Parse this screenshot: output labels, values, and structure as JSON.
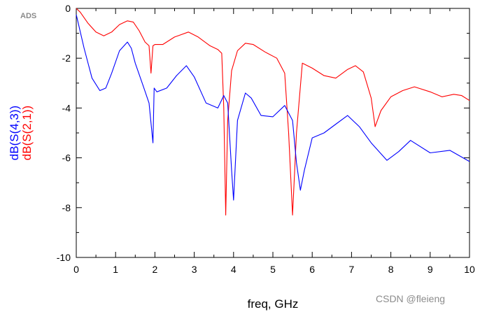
{
  "ads_label": "ADS",
  "watermark": "CSDN @fleieng",
  "chart_data": {
    "type": "line",
    "xlabel": "freq, GHz",
    "xlim": [
      0,
      10
    ],
    "ylim": [
      -10,
      0
    ],
    "xticks": [
      0,
      1,
      2,
      3,
      4,
      5,
      6,
      7,
      8,
      9,
      10
    ],
    "yticks": [
      0,
      -2,
      -4,
      -6,
      -8,
      -10
    ],
    "grid": false,
    "series": [
      {
        "name": "dB(S(2,1))",
        "color": "#ff0000",
        "x": [
          0,
          0.1,
          0.3,
          0.5,
          0.7,
          0.9,
          1.1,
          1.3,
          1.45,
          1.6,
          1.75,
          1.85,
          1.9,
          1.95,
          2.0,
          2.2,
          2.5,
          2.85,
          3.1,
          3.4,
          3.6,
          3.7,
          3.75,
          3.8,
          3.85,
          3.95,
          4.1,
          4.3,
          4.5,
          4.8,
          5.1,
          5.3,
          5.4,
          5.5,
          5.6,
          5.75,
          6.0,
          6.3,
          6.6,
          6.9,
          7.1,
          7.3,
          7.5,
          7.6,
          7.75,
          8.0,
          8.3,
          8.6,
          9.0,
          9.3,
          9.6,
          9.8,
          10
        ],
        "y": [
          0,
          -0.15,
          -0.6,
          -0.95,
          -1.1,
          -0.95,
          -0.65,
          -0.5,
          -0.55,
          -0.9,
          -1.35,
          -1.5,
          -2.6,
          -1.5,
          -1.45,
          -1.45,
          -1.15,
          -0.95,
          -1.15,
          -1.5,
          -1.65,
          -1.8,
          -4.0,
          -8.3,
          -4.5,
          -2.5,
          -1.7,
          -1.4,
          -1.45,
          -1.75,
          -2.0,
          -2.6,
          -5.0,
          -8.3,
          -5.0,
          -2.2,
          -2.4,
          -2.7,
          -2.8,
          -2.45,
          -2.3,
          -2.55,
          -3.6,
          -4.75,
          -4.1,
          -3.55,
          -3.3,
          -3.15,
          -3.35,
          -3.55,
          -3.45,
          -3.5,
          -3.7
        ]
      },
      {
        "name": "dB(S(4,3))",
        "color": "#0000ff",
        "x": [
          0,
          0.2,
          0.4,
          0.6,
          0.75,
          0.9,
          1.1,
          1.3,
          1.4,
          1.5,
          1.7,
          1.85,
          1.95,
          1.98,
          2.05,
          2.3,
          2.55,
          2.8,
          3.0,
          3.3,
          3.6,
          3.75,
          3.85,
          3.95,
          4.0,
          4.1,
          4.3,
          4.45,
          4.7,
          5.0,
          5.3,
          5.5,
          5.6,
          5.7,
          5.8,
          6.0,
          6.3,
          6.6,
          6.9,
          7.2,
          7.5,
          7.9,
          8.2,
          8.5,
          9.0,
          9.5,
          10
        ],
        "y": [
          -0.25,
          -1.6,
          -2.8,
          -3.3,
          -3.2,
          -2.6,
          -1.7,
          -1.35,
          -1.6,
          -2.2,
          -3.1,
          -3.8,
          -5.4,
          -3.2,
          -3.35,
          -3.2,
          -2.7,
          -2.3,
          -2.75,
          -3.8,
          -4.0,
          -3.5,
          -3.8,
          -6.5,
          -7.7,
          -4.5,
          -3.4,
          -3.6,
          -4.3,
          -4.35,
          -3.9,
          -4.5,
          -6.2,
          -7.3,
          -6.5,
          -5.2,
          -5.0,
          -4.65,
          -4.3,
          -4.75,
          -5.4,
          -6.1,
          -5.75,
          -5.3,
          -5.8,
          -5.7,
          -6.15
        ]
      }
    ]
  }
}
